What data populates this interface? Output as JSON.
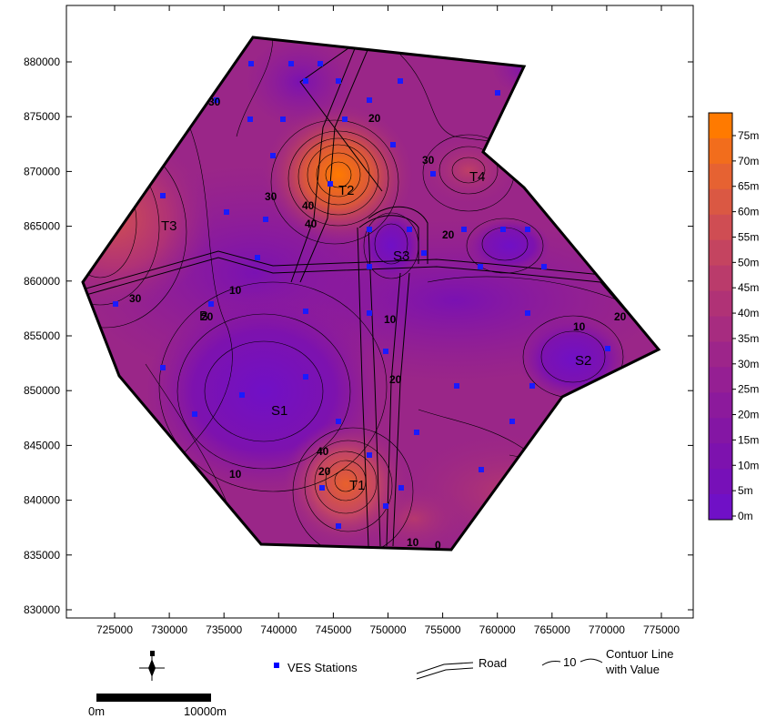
{
  "map": {
    "x_ticks": [
      "725000",
      "730000",
      "735000",
      "740000",
      "745000",
      "750000",
      "755000",
      "760000",
      "765000",
      "770000",
      "775000"
    ],
    "y_ticks": [
      "880000",
      "875000",
      "870000",
      "865000",
      "860000",
      "855000",
      "850000",
      "845000",
      "840000",
      "835000",
      "830000"
    ],
    "zones": [
      "T1",
      "T2",
      "T3",
      "T4",
      "S1",
      "S2",
      "S3",
      "B"
    ],
    "contour_labels": [
      "10",
      "10",
      "10",
      "10",
      "20",
      "20",
      "20",
      "20",
      "30",
      "30",
      "30",
      "40",
      "40",
      "30",
      "20",
      "10",
      "40",
      "20",
      "0"
    ]
  },
  "color_scale": {
    "labels": [
      "75m",
      "70m",
      "65m",
      "60m",
      "55m",
      "50m",
      "45m",
      "40m",
      "35m",
      "30m",
      "25m",
      "20m",
      "15m",
      "10m",
      "5m",
      "0m"
    ],
    "colors": [
      "#ff7a00",
      "#f26d1c",
      "#e66232",
      "#da5843",
      "#cf4d53",
      "#c44460",
      "#ba3b6b",
      "#b03276",
      "#a72c80",
      "#9d258a",
      "#951f93",
      "#8c1a9c",
      "#8416a4",
      "#7d12ae",
      "#7710b8",
      "#7010c6"
    ]
  },
  "legend": {
    "stations_label": "VES Stations",
    "road_label": "Road",
    "contour_value": "10",
    "contour_label_line1": "Contuor Line",
    "contour_label_line2": "with Value"
  },
  "scale_bar": {
    "start_label": "0m",
    "end_label": "10000m"
  }
}
